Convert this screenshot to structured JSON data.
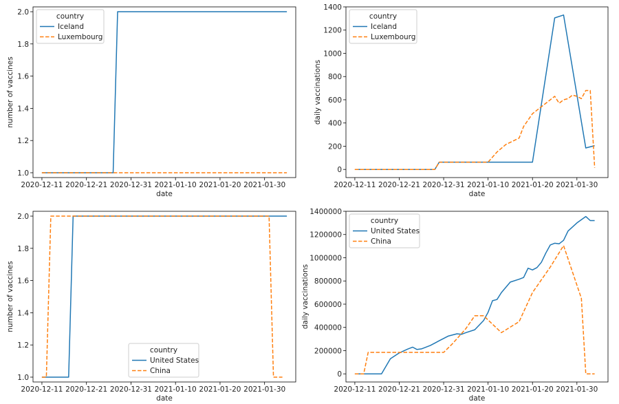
{
  "colors": {
    "series1": "#1f77b4",
    "series2": "#ff7f0e"
  },
  "chart_data": [
    {
      "type": "line",
      "xlabel": "date",
      "ylabel": "number of vaccines",
      "xlim": [
        "2020-12-09",
        "2021-02-06"
      ],
      "ylim": [
        0.97,
        2.03
      ],
      "xticks": [
        "2020-12-11",
        "2020-12-21",
        "2020-12-31",
        "2021-01-10",
        "2021-01-20",
        "2021-01-30"
      ],
      "yticks": [
        1.0,
        1.2,
        1.4,
        1.6,
        1.8,
        2.0
      ],
      "ytick_labels": [
        "1.0",
        "1.2",
        "1.4",
        "1.6",
        "1.8",
        "2.0"
      ],
      "legend": {
        "title": "country",
        "placement": "top-left"
      },
      "series": [
        {
          "name": "Iceland",
          "style": "solid",
          "x": [
            "2020-12-11",
            "2020-12-27",
            "2020-12-28",
            "2021-02-04"
          ],
          "y": [
            1,
            1,
            2,
            2
          ]
        },
        {
          "name": "Luxembourg",
          "style": "dashed",
          "x": [
            "2020-12-11",
            "2021-02-04"
          ],
          "y": [
            1,
            1
          ]
        }
      ]
    },
    {
      "type": "line",
      "xlabel": "date",
      "ylabel": "daily vaccinations",
      "xlim": [
        "2020-12-09",
        "2021-02-06"
      ],
      "ylim": [
        -70,
        1400
      ],
      "xticks": [
        "2020-12-11",
        "2020-12-21",
        "2020-12-31",
        "2021-01-10",
        "2021-01-20",
        "2021-01-30"
      ],
      "yticks": [
        0,
        200,
        400,
        600,
        800,
        1000,
        1200,
        1400
      ],
      "ytick_labels": [
        "0",
        "200",
        "400",
        "600",
        "800",
        "1000",
        "1200",
        "1400"
      ],
      "legend": {
        "title": "country",
        "placement": "top-left"
      },
      "series": [
        {
          "name": "Iceland",
          "style": "solid",
          "x": [
            "2020-12-11",
            "2020-12-29",
            "2020-12-30",
            "2021-01-20",
            "2021-01-25",
            "2021-01-27",
            "2021-02-01",
            "2021-02-03"
          ],
          "y": [
            0,
            0,
            63,
            63,
            1305,
            1330,
            185,
            205
          ]
        },
        {
          "name": "Luxembourg",
          "style": "dashed",
          "x": [
            "2020-12-11",
            "2020-12-29",
            "2020-12-30",
            "2021-01-10",
            "2021-01-12",
            "2021-01-14",
            "2021-01-17",
            "2021-01-18",
            "2021-01-20",
            "2021-01-22",
            "2021-01-24",
            "2021-01-25",
            "2021-01-26",
            "2021-01-27",
            "2021-01-28",
            "2021-01-29",
            "2021-01-30",
            "2021-01-31",
            "2021-02-01",
            "2021-02-02",
            "2021-02-03"
          ],
          "y": [
            0,
            0,
            63,
            63,
            150,
            215,
            270,
            370,
            480,
            540,
            600,
            630,
            570,
            600,
            610,
            640,
            630,
            610,
            680,
            680,
            15
          ]
        }
      ]
    },
    {
      "type": "line",
      "xlabel": "date",
      "ylabel": "number of vaccines",
      "xlim": [
        "2020-12-09",
        "2021-02-06"
      ],
      "ylim": [
        0.97,
        2.03
      ],
      "xticks": [
        "2020-12-11",
        "2020-12-21",
        "2020-12-31",
        "2021-01-10",
        "2021-01-20",
        "2021-01-30"
      ],
      "yticks": [
        1.0,
        1.2,
        1.4,
        1.6,
        1.8,
        2.0
      ],
      "ytick_labels": [
        "1.0",
        "1.2",
        "1.4",
        "1.6",
        "1.8",
        "2.0"
      ],
      "legend": {
        "title": "country",
        "placement": "bottom-center"
      },
      "series": [
        {
          "name": "United States",
          "style": "solid",
          "x": [
            "2020-12-11",
            "2020-12-17",
            "2020-12-18",
            "2021-02-04"
          ],
          "y": [
            1,
            1,
            2,
            2
          ]
        },
        {
          "name": "China",
          "style": "dashed",
          "x": [
            "2020-12-11",
            "2020-12-12",
            "2020-12-13",
            "2021-01-31",
            "2021-02-01",
            "2021-02-03"
          ],
          "y": [
            1,
            1,
            2,
            2,
            1,
            1
          ]
        }
      ]
    },
    {
      "type": "line",
      "xlabel": "date",
      "ylabel": "daily vaccinations",
      "xlim": [
        "2020-12-09",
        "2021-02-06"
      ],
      "ylim": [
        -70000,
        1400000
      ],
      "xticks": [
        "2020-12-11",
        "2020-12-21",
        "2020-12-31",
        "2021-01-10",
        "2021-01-20",
        "2021-01-30"
      ],
      "yticks": [
        0,
        200000,
        400000,
        600000,
        800000,
        1000000,
        1200000,
        1400000
      ],
      "ytick_labels": [
        "0",
        "200000",
        "400000",
        "600000",
        "800000",
        "1000000",
        "1200000",
        "1400000"
      ],
      "legend": {
        "title": "country",
        "placement": "top-left"
      },
      "series": [
        {
          "name": "United States",
          "style": "solid",
          "x": [
            "2020-12-11",
            "2020-12-14",
            "2020-12-17",
            "2020-12-19",
            "2020-12-21",
            "2020-12-23",
            "2020-12-24",
            "2020-12-25",
            "2020-12-26",
            "2020-12-28",
            "2020-12-30",
            "2021-01-01",
            "2021-01-03",
            "2021-01-04",
            "2021-01-05",
            "2021-01-07",
            "2021-01-09",
            "2021-01-10",
            "2021-01-11",
            "2021-01-12",
            "2021-01-13",
            "2021-01-15",
            "2021-01-17",
            "2021-01-18",
            "2021-01-19",
            "2021-01-20",
            "2021-01-21",
            "2021-01-22",
            "2021-01-23",
            "2021-01-24",
            "2021-01-25",
            "2021-01-26",
            "2021-01-27",
            "2021-01-28",
            "2021-01-30",
            "2021-02-01",
            "2021-02-02",
            "2021-02-03"
          ],
          "y": [
            0,
            0,
            0,
            130000,
            180000,
            215000,
            230000,
            210000,
            215000,
            245000,
            285000,
            325000,
            345000,
            340000,
            355000,
            380000,
            460000,
            530000,
            630000,
            640000,
            700000,
            790000,
            815000,
            830000,
            910000,
            895000,
            915000,
            960000,
            1040000,
            1110000,
            1125000,
            1120000,
            1150000,
            1230000,
            1300000,
            1355000,
            1320000,
            1320000
          ]
        },
        {
          "name": "China",
          "style": "dashed",
          "x": [
            "2020-12-11",
            "2020-12-13",
            "2020-12-14",
            "2020-12-31",
            "2021-01-02",
            "2021-01-05",
            "2021-01-07",
            "2021-01-09",
            "2021-01-13",
            "2021-01-17",
            "2021-01-20",
            "2021-01-24",
            "2021-01-27",
            "2021-01-31",
            "2021-02-01",
            "2021-02-03"
          ],
          "y": [
            0,
            0,
            185000,
            185000,
            260000,
            390000,
            500000,
            500000,
            355000,
            450000,
            700000,
            920000,
            1105000,
            650000,
            0,
            0
          ]
        }
      ]
    }
  ]
}
